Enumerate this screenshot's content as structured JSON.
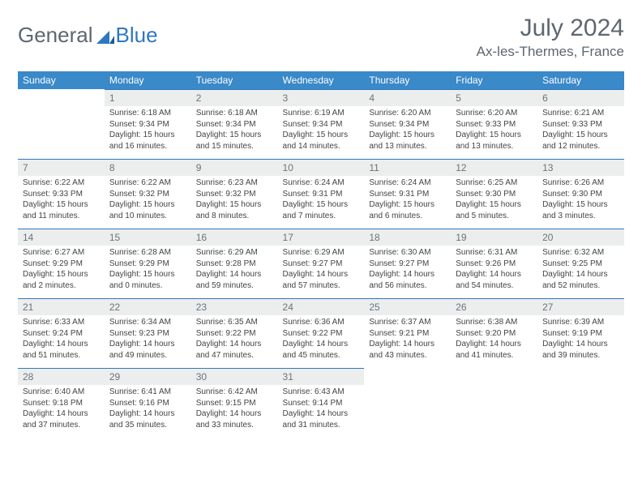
{
  "logo": {
    "text1": "General",
    "text2": "Blue"
  },
  "title": "July 2024",
  "location": "Ax-les-Thermes, France",
  "colors": {
    "header_bg": "#3a89c9",
    "header_text": "#ffffff",
    "daynum_bg": "#eceeee",
    "daynum_text": "#6a747b",
    "border": "#2e78c0",
    "body_text": "#444",
    "page_bg": "#ffffff",
    "title_color": "#5d6770"
  },
  "typography": {
    "title_fontsize": 30,
    "location_fontsize": 17,
    "weekday_fontsize": 12,
    "daynum_fontsize": 12,
    "body_fontsize": 10
  },
  "weekdays": [
    "Sunday",
    "Monday",
    "Tuesday",
    "Wednesday",
    "Thursday",
    "Friday",
    "Saturday"
  ],
  "weeks": [
    [
      null,
      {
        "n": "1",
        "sr": "6:18 AM",
        "ss": "9:34 PM",
        "dl": "15 hours and 16 minutes."
      },
      {
        "n": "2",
        "sr": "6:18 AM",
        "ss": "9:34 PM",
        "dl": "15 hours and 15 minutes."
      },
      {
        "n": "3",
        "sr": "6:19 AM",
        "ss": "9:34 PM",
        "dl": "15 hours and 14 minutes."
      },
      {
        "n": "4",
        "sr": "6:20 AM",
        "ss": "9:34 PM",
        "dl": "15 hours and 13 minutes."
      },
      {
        "n": "5",
        "sr": "6:20 AM",
        "ss": "9:33 PM",
        "dl": "15 hours and 13 minutes."
      },
      {
        "n": "6",
        "sr": "6:21 AM",
        "ss": "9:33 PM",
        "dl": "15 hours and 12 minutes."
      }
    ],
    [
      {
        "n": "7",
        "sr": "6:22 AM",
        "ss": "9:33 PM",
        "dl": "15 hours and 11 minutes."
      },
      {
        "n": "8",
        "sr": "6:22 AM",
        "ss": "9:32 PM",
        "dl": "15 hours and 10 minutes."
      },
      {
        "n": "9",
        "sr": "6:23 AM",
        "ss": "9:32 PM",
        "dl": "15 hours and 8 minutes."
      },
      {
        "n": "10",
        "sr": "6:24 AM",
        "ss": "9:31 PM",
        "dl": "15 hours and 7 minutes."
      },
      {
        "n": "11",
        "sr": "6:24 AM",
        "ss": "9:31 PM",
        "dl": "15 hours and 6 minutes."
      },
      {
        "n": "12",
        "sr": "6:25 AM",
        "ss": "9:30 PM",
        "dl": "15 hours and 5 minutes."
      },
      {
        "n": "13",
        "sr": "6:26 AM",
        "ss": "9:30 PM",
        "dl": "15 hours and 3 minutes."
      }
    ],
    [
      {
        "n": "14",
        "sr": "6:27 AM",
        "ss": "9:29 PM",
        "dl": "15 hours and 2 minutes."
      },
      {
        "n": "15",
        "sr": "6:28 AM",
        "ss": "9:29 PM",
        "dl": "15 hours and 0 minutes."
      },
      {
        "n": "16",
        "sr": "6:29 AM",
        "ss": "9:28 PM",
        "dl": "14 hours and 59 minutes."
      },
      {
        "n": "17",
        "sr": "6:29 AM",
        "ss": "9:27 PM",
        "dl": "14 hours and 57 minutes."
      },
      {
        "n": "18",
        "sr": "6:30 AM",
        "ss": "9:27 PM",
        "dl": "14 hours and 56 minutes."
      },
      {
        "n": "19",
        "sr": "6:31 AM",
        "ss": "9:26 PM",
        "dl": "14 hours and 54 minutes."
      },
      {
        "n": "20",
        "sr": "6:32 AM",
        "ss": "9:25 PM",
        "dl": "14 hours and 52 minutes."
      }
    ],
    [
      {
        "n": "21",
        "sr": "6:33 AM",
        "ss": "9:24 PM",
        "dl": "14 hours and 51 minutes."
      },
      {
        "n": "22",
        "sr": "6:34 AM",
        "ss": "9:23 PM",
        "dl": "14 hours and 49 minutes."
      },
      {
        "n": "23",
        "sr": "6:35 AM",
        "ss": "9:22 PM",
        "dl": "14 hours and 47 minutes."
      },
      {
        "n": "24",
        "sr": "6:36 AM",
        "ss": "9:22 PM",
        "dl": "14 hours and 45 minutes."
      },
      {
        "n": "25",
        "sr": "6:37 AM",
        "ss": "9:21 PM",
        "dl": "14 hours and 43 minutes."
      },
      {
        "n": "26",
        "sr": "6:38 AM",
        "ss": "9:20 PM",
        "dl": "14 hours and 41 minutes."
      },
      {
        "n": "27",
        "sr": "6:39 AM",
        "ss": "9:19 PM",
        "dl": "14 hours and 39 minutes."
      }
    ],
    [
      {
        "n": "28",
        "sr": "6:40 AM",
        "ss": "9:18 PM",
        "dl": "14 hours and 37 minutes."
      },
      {
        "n": "29",
        "sr": "6:41 AM",
        "ss": "9:16 PM",
        "dl": "14 hours and 35 minutes."
      },
      {
        "n": "30",
        "sr": "6:42 AM",
        "ss": "9:15 PM",
        "dl": "14 hours and 33 minutes."
      },
      {
        "n": "31",
        "sr": "6:43 AM",
        "ss": "9:14 PM",
        "dl": "14 hours and 31 minutes."
      },
      null,
      null,
      null
    ]
  ],
  "labels": {
    "sunrise": "Sunrise: ",
    "sunset": "Sunset: ",
    "daylight": "Daylight: "
  }
}
